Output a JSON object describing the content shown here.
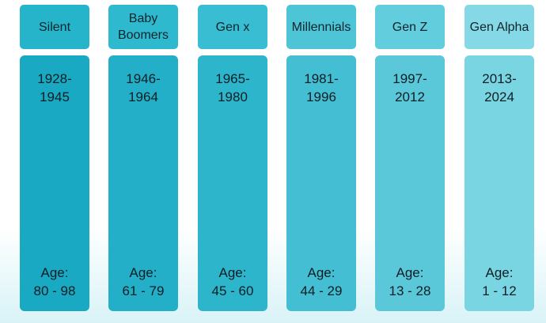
{
  "columns": [
    {
      "name": "Silent",
      "years": [
        "1928-",
        "1945"
      ],
      "age": [
        "Age:",
        "80 - 98"
      ]
    },
    {
      "name": "Baby Boomers",
      "years": [
        "1946-",
        "1964"
      ],
      "age": [
        "Age:",
        "61 - 79"
      ]
    },
    {
      "name": "Gen x",
      "years": [
        "1965-",
        "1980"
      ],
      "age": [
        "Age:",
        "45 - 60"
      ]
    },
    {
      "name": "Millennials",
      "years": [
        "1981-",
        "1996"
      ],
      "age": [
        "Age:",
        "44 - 29"
      ]
    },
    {
      "name": "Gen Z",
      "years": [
        "1997-",
        "2012"
      ],
      "age": [
        "Age:",
        "13 - 28"
      ]
    },
    {
      "name": "Gen Alpha",
      "years": [
        "2013-",
        "2024"
      ],
      "age": [
        "Age:",
        "1 - 12"
      ]
    }
  ]
}
